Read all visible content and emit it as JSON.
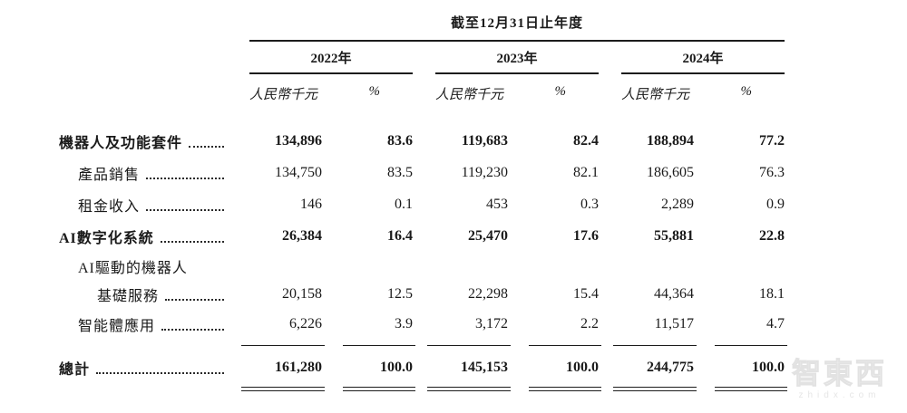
{
  "table": {
    "title": "截至12月31日止年度",
    "years": [
      "2022年",
      "2023年",
      "2024年"
    ],
    "unit_header": "人民幣千元",
    "pct_header": "%",
    "rows": [
      {
        "label": "機器人及功能套件",
        "v1": "134,896",
        "p1": "83.6",
        "v2": "119,683",
        "p2": "82.4",
        "v3": "188,894",
        "p3": "77.2"
      },
      {
        "label": "產品銷售",
        "v1": "134,750",
        "p1": "83.5",
        "v2": "119,230",
        "p2": "82.1",
        "v3": "186,605",
        "p3": "76.3"
      },
      {
        "label": "租金收入",
        "v1": "146",
        "p1": "0.1",
        "v2": "453",
        "p2": "0.3",
        "v3": "2,289",
        "p3": "0.9"
      },
      {
        "label": "AI數字化系統",
        "v1": "26,384",
        "p1": "16.4",
        "v2": "25,470",
        "p2": "17.6",
        "v3": "55,881",
        "p3": "22.8"
      },
      {
        "label": "AI驅動的機器人",
        "v1": "",
        "p1": "",
        "v2": "",
        "p2": "",
        "v3": "",
        "p3": ""
      },
      {
        "label": "基礎服務",
        "v1": "20,158",
        "p1": "12.5",
        "v2": "22,298",
        "p2": "15.4",
        "v3": "44,364",
        "p3": "18.1"
      },
      {
        "label": "智能體應用",
        "v1": "6,226",
        "p1": "3.9",
        "v2": "3,172",
        "p2": "2.2",
        "v3": "11,517",
        "p3": "4.7"
      }
    ],
    "total": {
      "label": "總計",
      "v1": "161,280",
      "p1": "100.0",
      "v2": "145,153",
      "p2": "100.0",
      "v3": "244,775",
      "p3": "100.0"
    }
  },
  "watermark": {
    "brand": "智東西",
    "site": "zhidx.com"
  }
}
